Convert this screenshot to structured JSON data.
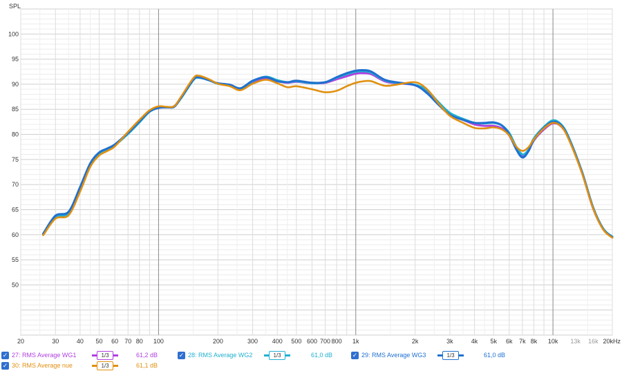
{
  "chart_data": {
    "type": "line",
    "ylabel": "SPL",
    "xlabel": "",
    "x_scale": "log",
    "xlim": [
      20,
      20000
    ],
    "ylim": [
      40,
      105
    ],
    "yticks": [
      50,
      55,
      60,
      65,
      70,
      75,
      80,
      85,
      90,
      95,
      100
    ],
    "xticks": [
      {
        "value": 20,
        "label": "20"
      },
      {
        "value": 30,
        "label": "30"
      },
      {
        "value": 40,
        "label": "40"
      },
      {
        "value": 50,
        "label": "50"
      },
      {
        "value": 60,
        "label": "60"
      },
      {
        "value": 70,
        "label": "70"
      },
      {
        "value": 80,
        "label": "80"
      },
      {
        "value": 100,
        "label": "100"
      },
      {
        "value": 200,
        "label": "200"
      },
      {
        "value": 300,
        "label": "300"
      },
      {
        "value": 400,
        "label": "400"
      },
      {
        "value": 500,
        "label": "500"
      },
      {
        "value": 600,
        "label": "600"
      },
      {
        "value": 700,
        "label": "700"
      },
      {
        "value": 800,
        "label": "800"
      },
      {
        "value": 1000,
        "label": "1k"
      },
      {
        "value": 2000,
        "label": "2k"
      },
      {
        "value": 3000,
        "label": "3k"
      },
      {
        "value": 4000,
        "label": "4k"
      },
      {
        "value": 5000,
        "label": "5k"
      },
      {
        "value": 6000,
        "label": "6k"
      },
      {
        "value": 7000,
        "label": "7k"
      },
      {
        "value": 8000,
        "label": "8k"
      },
      {
        "value": 10000,
        "label": "10k"
      },
      {
        "value": 13000,
        "label": "13k",
        "dim": true
      },
      {
        "value": 16000,
        "label": "16k",
        "dim": true
      },
      {
        "value": 20000,
        "label": "20kHz"
      }
    ],
    "grid": true,
    "legend_position": "bottom",
    "x": [
      26,
      30,
      35,
      40,
      45,
      50,
      55,
      60,
      70,
      80,
      90,
      100,
      110,
      120,
      130,
      150,
      160,
      180,
      200,
      230,
      260,
      300,
      350,
      400,
      450,
      500,
      600,
      700,
      800,
      900,
      1000,
      1100,
      1200,
      1400,
      1600,
      2000,
      2300,
      2600,
      3000,
      3500,
      4000,
      4500,
      5000,
      5500,
      6000,
      6500,
      7000,
      7500,
      8000,
      9000,
      10000,
      11000,
      12000,
      14000,
      16000,
      18000,
      20000
    ],
    "series": [
      {
        "name": "27: RMS Average WG1",
        "color": "#b040e0",
        "level": "61,2 dB",
        "values": [
          60.2,
          63.6,
          64.5,
          69.3,
          74.0,
          76.2,
          77.1,
          77.9,
          80.4,
          82.7,
          84.6,
          85.3,
          85.4,
          85.6,
          87.4,
          91.0,
          91.5,
          90.9,
          90.1,
          89.7,
          89.0,
          90.4,
          91.2,
          90.6,
          90.3,
          90.5,
          90.2,
          90.3,
          91.0,
          91.6,
          92.1,
          92.2,
          92.0,
          90.6,
          90.2,
          89.8,
          88.3,
          86.2,
          84.0,
          82.9,
          82.0,
          81.7,
          81.7,
          81.2,
          79.8,
          77.2,
          75.6,
          76.7,
          78.8,
          81.0,
          82.2,
          81.6,
          79.2,
          72.5,
          65.2,
          61.1,
          59.6
        ]
      },
      {
        "name": "28: RMS Average WG2",
        "color": "#20b0d0",
        "level": "61,0 dB",
        "values": [
          60.1,
          63.5,
          64.3,
          69.1,
          73.8,
          76.0,
          77.0,
          77.8,
          80.1,
          82.4,
          84.5,
          85.3,
          85.4,
          85.6,
          87.2,
          90.8,
          91.3,
          90.8,
          90.1,
          89.8,
          89.1,
          90.6,
          91.5,
          90.8,
          90.4,
          90.6,
          90.2,
          90.4,
          91.3,
          92.0,
          92.5,
          92.6,
          92.3,
          90.8,
          90.3,
          89.9,
          88.8,
          86.6,
          84.3,
          83.1,
          82.3,
          82.2,
          82.3,
          81.8,
          80.3,
          77.6,
          76.0,
          76.9,
          79.2,
          81.5,
          82.8,
          82.0,
          79.5,
          72.7,
          65.4,
          61.2,
          59.6
        ]
      },
      {
        "name": "29: RMS Average WG3",
        "color": "#2070d0",
        "level": "61,0 dB",
        "values": [
          60.2,
          63.8,
          64.6,
          69.5,
          74.2,
          76.4,
          77.2,
          78.0,
          80.3,
          82.6,
          84.6,
          85.3,
          85.4,
          85.5,
          87.3,
          90.9,
          91.4,
          90.8,
          90.2,
          89.9,
          89.2,
          90.7,
          91.4,
          90.6,
          90.4,
          90.7,
          90.3,
          90.4,
          91.4,
          92.2,
          92.7,
          92.8,
          92.5,
          90.9,
          90.4,
          89.8,
          88.2,
          86.1,
          83.9,
          82.9,
          82.3,
          82.3,
          82.4,
          81.8,
          80.0,
          77.1,
          75.4,
          76.6,
          78.9,
          81.3,
          82.5,
          81.8,
          79.3,
          72.6,
          65.3,
          61.1,
          59.5
        ]
      },
      {
        "name": "30: RMS Average nue",
        "color": "#e09010",
        "level": "61,1 dB",
        "values": [
          59.9,
          63.2,
          63.9,
          68.6,
          73.5,
          75.8,
          76.7,
          77.6,
          80.5,
          82.9,
          84.8,
          85.6,
          85.5,
          85.6,
          87.5,
          91.2,
          91.7,
          91.0,
          90.1,
          89.6,
          88.8,
          90.1,
          90.9,
          90.2,
          89.4,
          89.6,
          89.0,
          88.4,
          88.7,
          89.6,
          90.3,
          90.6,
          90.6,
          89.7,
          89.9,
          90.4,
          89.0,
          86.4,
          83.7,
          82.3,
          81.3,
          81.2,
          81.4,
          81.0,
          79.8,
          77.6,
          76.7,
          77.4,
          79.0,
          81.2,
          82.3,
          81.6,
          79.1,
          72.4,
          65.2,
          61.0,
          59.4
        ]
      }
    ]
  },
  "legend": {
    "smoothing_label": "1/3"
  }
}
